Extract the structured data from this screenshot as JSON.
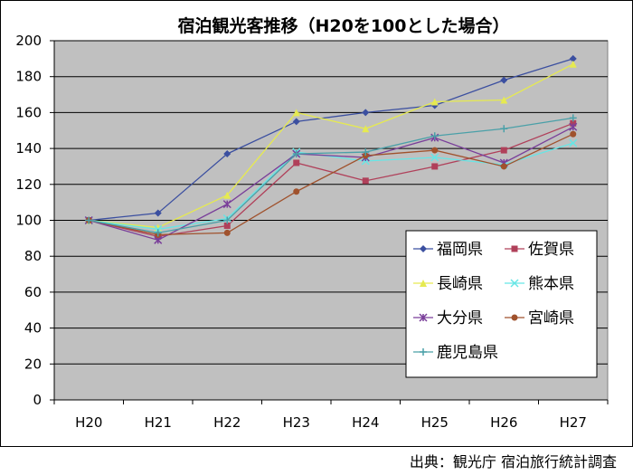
{
  "chart_data": {
    "type": "line",
    "title": "宿泊観光客推移（H20を100とした場合）",
    "xlabel": "",
    "ylabel": "",
    "categories": [
      "H20",
      "H21",
      "H22",
      "H23",
      "H24",
      "H25",
      "H26",
      "H27"
    ],
    "ylim": [
      0,
      200
    ],
    "yticks": [
      0,
      20,
      40,
      60,
      80,
      100,
      120,
      140,
      160,
      180,
      200
    ],
    "grid": true,
    "plot_background": "#c0c0c0",
    "legend_position": "bottom-right",
    "series": [
      {
        "name": "福岡県",
        "color": "#3b4fa0",
        "marker": "diamond",
        "values": [
          100,
          104,
          137,
          155,
          160,
          164,
          178,
          190
        ]
      },
      {
        "name": "佐賀県",
        "color": "#b0405a",
        "marker": "square",
        "values": [
          100,
          91,
          97,
          132,
          122,
          130,
          139,
          154
        ]
      },
      {
        "name": "長崎県",
        "color": "#e6ea50",
        "marker": "triangle",
        "values": [
          100,
          96,
          114,
          160,
          151,
          166,
          167,
          187
        ]
      },
      {
        "name": "熊本県",
        "color": "#66e6e6",
        "marker": "x",
        "values": [
          100,
          95,
          101,
          138,
          133,
          135,
          131,
          143
        ]
      },
      {
        "name": "大分県",
        "color": "#7a3f9a",
        "marker": "star",
        "values": [
          100,
          89,
          109,
          137,
          135,
          146,
          132,
          152
        ]
      },
      {
        "name": "宮崎県",
        "color": "#a0522d",
        "marker": "circle",
        "values": [
          100,
          92,
          93,
          116,
          136,
          139,
          130,
          148
        ]
      },
      {
        "name": "鹿児島県",
        "color": "#4aa0a8",
        "marker": "plus",
        "values": [
          100,
          93,
          100,
          137,
          138,
          147,
          151,
          157
        ]
      }
    ]
  },
  "source": "出典：観光庁 宿泊旅行統計調査"
}
